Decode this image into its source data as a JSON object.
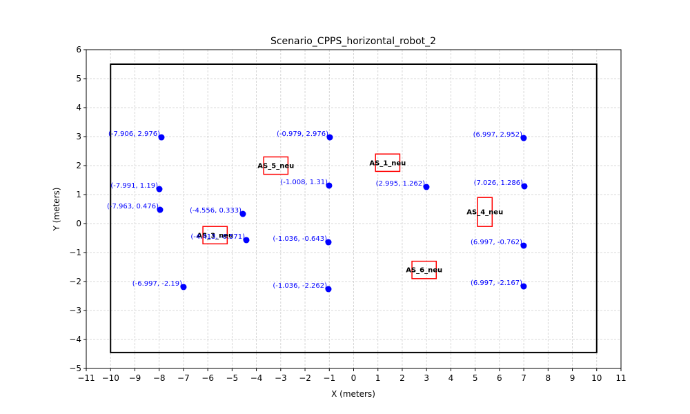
{
  "chart_data": {
    "type": "scatter",
    "title": "Scenario_CPPS_horizontal_robot_2",
    "xlabel": "X (meters)",
    "ylabel": "Y (meters)",
    "xlim": [
      -11,
      11
    ],
    "ylim": [
      -5,
      6
    ],
    "xticks": [
      -11,
      -10,
      -9,
      -8,
      -7,
      -6,
      -5,
      -4,
      -3,
      -2,
      -1,
      0,
      1,
      2,
      3,
      4,
      5,
      6,
      7,
      8,
      9,
      10,
      11
    ],
    "yticks": [
      -5,
      -4,
      -3,
      -2,
      -1,
      0,
      1,
      2,
      3,
      4,
      5,
      6
    ],
    "grid": true,
    "boundary": {
      "x": [
        -10,
        10
      ],
      "y": [
        -4.45,
        5.5
      ]
    },
    "points": [
      {
        "x": -7.906,
        "y": 2.976,
        "label": "(-7.906, 2.976)"
      },
      {
        "x": -7.991,
        "y": 1.19,
        "label": "(-7.991, 1.19)"
      },
      {
        "x": -7.963,
        "y": 0.476,
        "label": "(-7.963, 0.476)"
      },
      {
        "x": -6.997,
        "y": -2.19,
        "label": "(-6.997, -2.19)"
      },
      {
        "x": -4.556,
        "y": 0.333,
        "label": "(-4.556, 0.333)"
      },
      {
        "x": -4.413,
        "y": -0.571,
        "label": "(-4.413, -0.571)"
      },
      {
        "x": -0.979,
        "y": 2.976,
        "label": "(-0.979, 2.976)"
      },
      {
        "x": -1.008,
        "y": 1.31,
        "label": "(-1.008, 1.31)"
      },
      {
        "x": -1.036,
        "y": -0.643,
        "label": "(-1.036, -0.643)"
      },
      {
        "x": -1.036,
        "y": -2.262,
        "label": "(-1.036, -2.262)"
      },
      {
        "x": 2.995,
        "y": 1.262,
        "label": "(2.995, 1.262)"
      },
      {
        "x": 6.997,
        "y": 2.952,
        "label": "(6.997, 2.952)"
      },
      {
        "x": 7.026,
        "y": 1.286,
        "label": "(7.026, 1.286)"
      },
      {
        "x": 6.997,
        "y": -0.762,
        "label": "(6.997, -0.762)"
      },
      {
        "x": 6.997,
        "y": -2.167,
        "label": "(6.997, -2.167)"
      }
    ],
    "stations": [
      {
        "name": "AS_1_neu",
        "x": 0.9,
        "y": 1.8,
        "w": 1.0,
        "h": 0.6
      },
      {
        "name": "AS_3_neu",
        "x": -6.2,
        "y": -0.7,
        "w": 1.0,
        "h": 0.6
      },
      {
        "name": "AS_4_neu",
        "x": 5.1,
        "y": -0.1,
        "w": 0.6,
        "h": 1.0
      },
      {
        "name": "AS_5_neu",
        "x": -3.7,
        "y": 1.7,
        "w": 1.0,
        "h": 0.6
      },
      {
        "name": "AS_6_neu",
        "x": 2.4,
        "y": -1.9,
        "w": 1.0,
        "h": 0.6
      }
    ],
    "colors": {
      "points": "#0000ff",
      "point_labels": "#0000ff",
      "stations": "#ff0000",
      "boundary": "#000000",
      "grid": "#cccccc"
    }
  }
}
